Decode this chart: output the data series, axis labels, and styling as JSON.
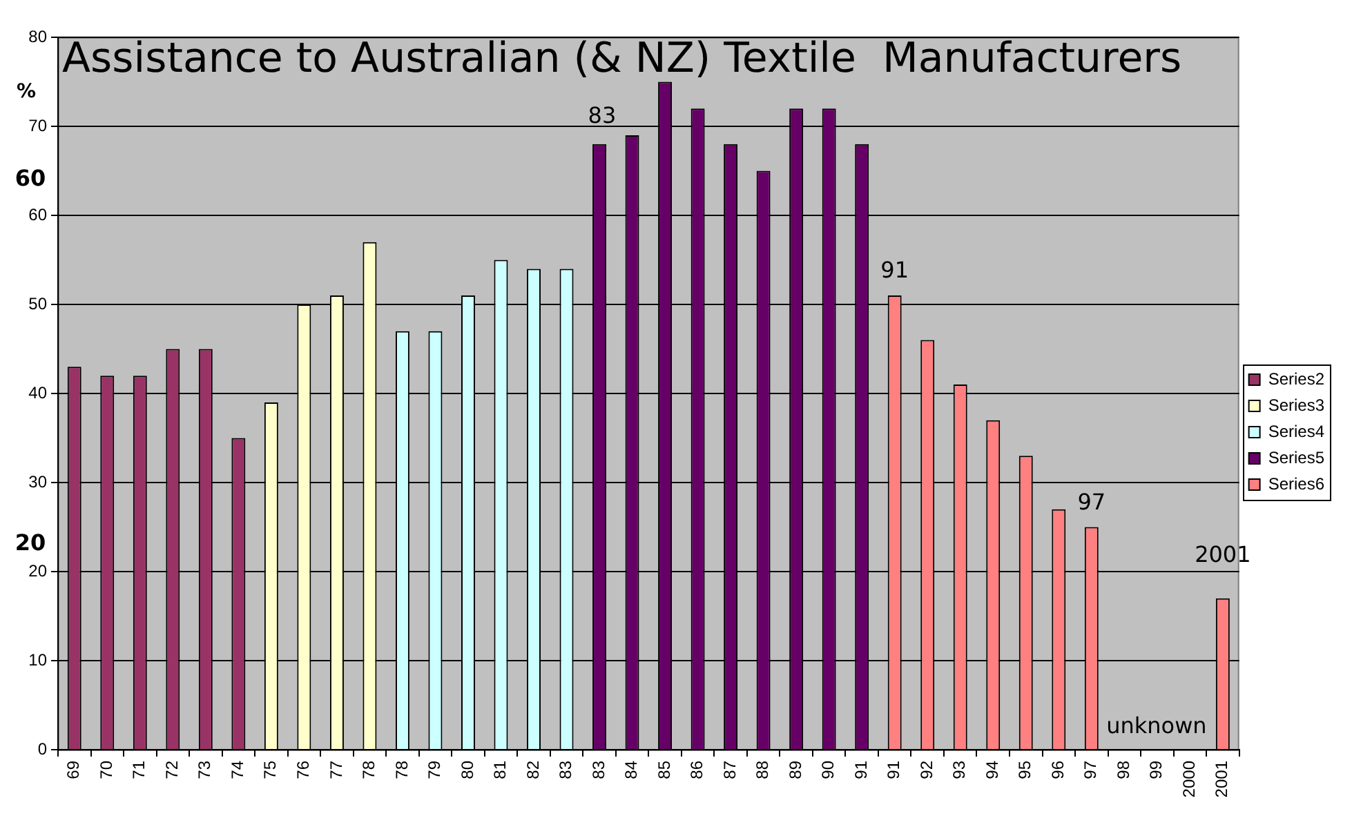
{
  "chart_data": {
    "type": "bar",
    "title": "Assistance to Australian (& NZ) Textile  Manufacturers",
    "ylabel": "%",
    "categories": [
      "69",
      "70",
      "71",
      "72",
      "73",
      "74",
      "75",
      "76",
      "77",
      "78",
      "78",
      "79",
      "80",
      "81",
      "82",
      "83",
      "83",
      "84",
      "85",
      "86",
      "87",
      "88",
      "89",
      "90",
      "91",
      "91",
      "92",
      "93",
      "94",
      "95",
      "96",
      "97",
      "98",
      "99",
      "2000",
      "2001"
    ],
    "series": [
      {
        "name": "Series2",
        "color": "#993366",
        "values": [
          43,
          42,
          42,
          45,
          45,
          35,
          null,
          null,
          null,
          null,
          null,
          null,
          null,
          null,
          null,
          null,
          null,
          null,
          null,
          null,
          null,
          null,
          null,
          null,
          null,
          null,
          null,
          null,
          null,
          null,
          null,
          null,
          null,
          null,
          null,
          null
        ]
      },
      {
        "name": "Series3",
        "color": "#ffffcc",
        "values": [
          null,
          null,
          null,
          null,
          null,
          null,
          39,
          50,
          51,
          57,
          null,
          null,
          null,
          null,
          null,
          null,
          null,
          null,
          null,
          null,
          null,
          null,
          null,
          null,
          null,
          null,
          null,
          null,
          null,
          null,
          null,
          null,
          null,
          null,
          null,
          null
        ]
      },
      {
        "name": "Series4",
        "color": "#ccffff",
        "values": [
          null,
          null,
          null,
          null,
          null,
          null,
          null,
          null,
          null,
          null,
          47,
          47,
          51,
          55,
          54,
          54,
          null,
          null,
          null,
          null,
          null,
          null,
          null,
          null,
          null,
          null,
          null,
          null,
          null,
          null,
          null,
          null,
          null,
          null,
          null,
          null
        ]
      },
      {
        "name": "Series5",
        "color": "#660066",
        "values": [
          null,
          null,
          null,
          null,
          null,
          null,
          null,
          null,
          null,
          null,
          null,
          null,
          null,
          null,
          null,
          null,
          68,
          69,
          75,
          72,
          68,
          65,
          72,
          72,
          68,
          null,
          null,
          null,
          null,
          null,
          null,
          null,
          null,
          null,
          null,
          null
        ]
      },
      {
        "name": "Series6",
        "color": "#ff8080",
        "values": [
          null,
          null,
          null,
          null,
          null,
          null,
          null,
          null,
          null,
          null,
          null,
          null,
          null,
          null,
          null,
          null,
          null,
          null,
          null,
          null,
          null,
          null,
          null,
          null,
          null,
          51,
          46,
          41,
          37,
          33,
          27,
          25,
          null,
          null,
          null,
          17
        ]
      }
    ],
    "ylim": [
      0,
      80
    ],
    "yticks": [
      0,
      10,
      20,
      30,
      40,
      50,
      60,
      70,
      80
    ],
    "grid": "y",
    "legend": "right",
    "annotations": [
      "60",
      "20",
      "83",
      {
        "text": "91",
        "x": "91",
        "y": 51
      },
      {
        "text": "97",
        "x": "97",
        "y": 25
      },
      {
        "text": "2001",
        "x": "2001",
        "y": 17
      },
      "unknown"
    ]
  }
}
